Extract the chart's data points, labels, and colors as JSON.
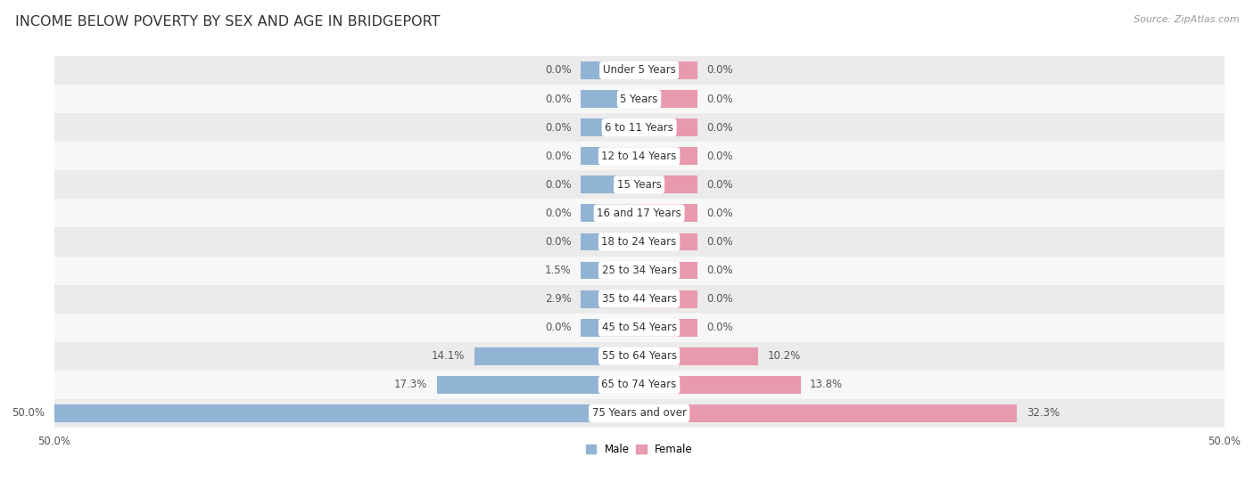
{
  "title": "INCOME BELOW POVERTY BY SEX AND AGE IN BRIDGEPORT",
  "source": "Source: ZipAtlas.com",
  "categories": [
    "Under 5 Years",
    "5 Years",
    "6 to 11 Years",
    "12 to 14 Years",
    "15 Years",
    "16 and 17 Years",
    "18 to 24 Years",
    "25 to 34 Years",
    "35 to 44 Years",
    "45 to 54 Years",
    "55 to 64 Years",
    "65 to 74 Years",
    "75 Years and over"
  ],
  "male": [
    0.0,
    0.0,
    0.0,
    0.0,
    0.0,
    0.0,
    0.0,
    1.5,
    2.9,
    0.0,
    14.1,
    17.3,
    50.0
  ],
  "female": [
    0.0,
    0.0,
    0.0,
    0.0,
    0.0,
    0.0,
    0.0,
    0.0,
    0.0,
    0.0,
    10.2,
    13.8,
    32.3
  ],
  "male_color": "#92b4d4",
  "female_color": "#e899ae",
  "row_color_odd": "#ebebeb",
  "row_color_even": "#f7f7f7",
  "xlim": 50.0,
  "min_bar": 5.0,
  "title_fontsize": 11.5,
  "label_fontsize": 8.5,
  "val_fontsize": 8.5,
  "tick_fontsize": 8.5,
  "source_fontsize": 8
}
